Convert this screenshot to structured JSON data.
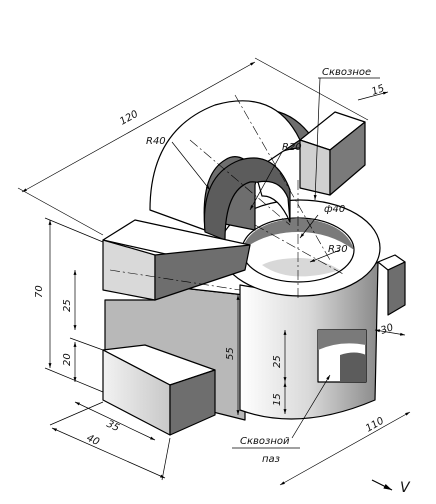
{
  "labels": {
    "through_hole_top": "Сквозное",
    "through_slot": "Сквозной",
    "slot_suffix": "паз",
    "view_direction": "V"
  },
  "dimensions": {
    "overall_length": "120",
    "arc_outer_radius": "R40",
    "arc_inner_radius": "R20",
    "top_boss_thickness": "15",
    "hole_diameter": "ф40",
    "boss_radius": "R30",
    "overall_height": "70",
    "upper_flange_height": "25",
    "lower_step_height": "20",
    "side_height": "55",
    "slot_height": "25",
    "slot_bottom_offset": "15",
    "front_step_depth": "35",
    "front_block_width": "40",
    "overall_width": "110",
    "right_step_width": "30"
  },
  "colors": {
    "shade_dark": "#6e6e6e",
    "shade_mid": "#b0b0b0",
    "shade_light": "#e8e8e8",
    "face_white": "#ffffff",
    "line": "#000000"
  }
}
